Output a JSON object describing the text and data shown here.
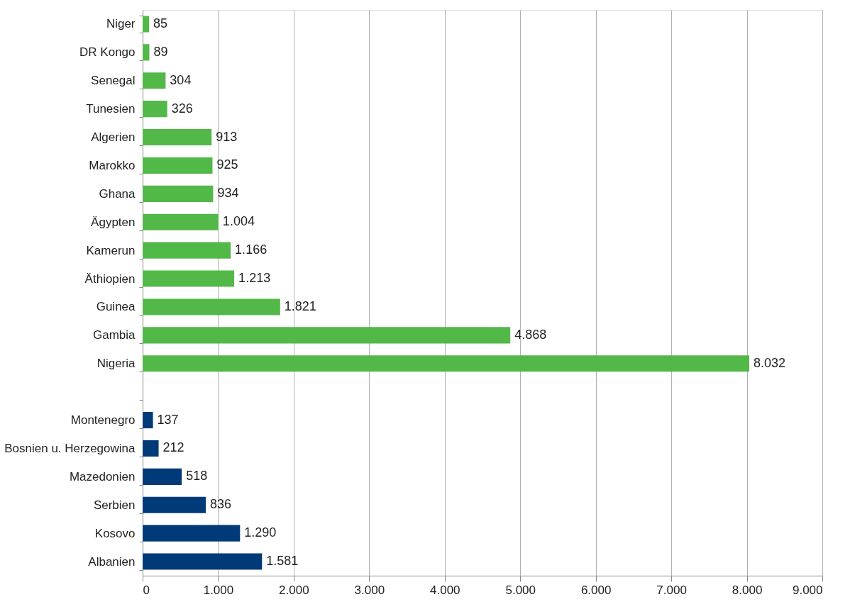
{
  "chart_data": {
    "type": "bar",
    "orientation": "horizontal",
    "categories": [
      "Niger",
      "DR Kongo",
      "Senegal",
      "Tunesien",
      "Algerien",
      "Marokko",
      "Ghana",
      "Ägypten",
      "Kamerun",
      "Äthiopien",
      "Guinea",
      "Gambia",
      "Nigeria",
      null,
      "Montenegro",
      "Bosnien u. Herzegowina",
      "Mazedonien",
      "Serbien",
      "Kosovo",
      "Albanien"
    ],
    "values": [
      85,
      89,
      304,
      326,
      913,
      925,
      934,
      1004,
      1166,
      1213,
      1821,
      4868,
      8032,
      null,
      137,
      212,
      518,
      836,
      1290,
      1581
    ],
    "colors": [
      "#52b848",
      "#52b848",
      "#52b848",
      "#52b848",
      "#52b848",
      "#52b848",
      "#52b848",
      "#52b848",
      "#52b848",
      "#52b848",
      "#52b848",
      "#52b848",
      "#52b848",
      "#52b848",
      "#003a78",
      "#003a78",
      "#003a78",
      "#003a78",
      "#003a78",
      "#003a78"
    ],
    "xlim": [
      0,
      9000
    ],
    "xticks": [
      0,
      {
        "value": 1000,
        "label": "1.000"
      },
      {
        "value": 2000,
        "label": "2.000"
      },
      {
        "value": 3000,
        "label": "3.000"
      },
      {
        "value": 4000,
        "label": "4.000"
      },
      {
        "value": 5000,
        "label": "5.000"
      },
      {
        "value": 6000,
        "label": "6.000"
      },
      {
        "value": 7000,
        "label": "7.000"
      },
      {
        "value": 8000,
        "label": "8.000"
      },
      {
        "value": 9000,
        "label": "9.000"
      }
    ],
    "value_labels": [
      "85",
      "89",
      "304",
      "326",
      "913",
      "925",
      "934",
      "1.004",
      "1.166",
      "1.213",
      "1.821",
      "4.868",
      "8.032",
      null,
      "137",
      "212",
      "518",
      "836",
      "1.290",
      "1.581"
    ],
    "grid": "x"
  }
}
